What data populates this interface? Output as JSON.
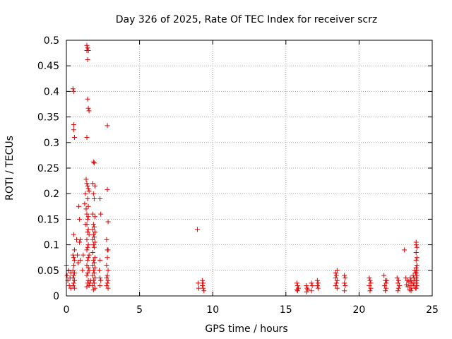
{
  "chart_data": {
    "type": "scatter",
    "title": "Day 326 of 2025, Rate Of TEC Index for receiver scrz",
    "xlabel": "GPS time / hours",
    "ylabel": "ROTI / TECUs",
    "xlim": [
      0,
      25
    ],
    "ylim": [
      0,
      0.5
    ],
    "xticks": [
      "0",
      "5",
      "10",
      "15",
      "20",
      "25"
    ],
    "yticks": [
      "0",
      "0.05",
      "0.1",
      "0.15",
      "0.2",
      "0.25",
      "0.3",
      "0.35",
      "0.4",
      "0.45",
      "0.5"
    ],
    "grid": true,
    "marker": "plus",
    "color": "#e00000",
    "points": [
      [
        0.0,
        0.06
      ],
      [
        0.05,
        0.04
      ],
      [
        0.1,
        0.03
      ],
      [
        0.15,
        0.05
      ],
      [
        0.2,
        0.02
      ],
      [
        0.25,
        0.035
      ],
      [
        0.3,
        0.045
      ],
      [
        0.3,
        0.015
      ],
      [
        0.45,
        0.405
      ],
      [
        0.5,
        0.4
      ],
      [
        0.5,
        0.335
      ],
      [
        0.5,
        0.325
      ],
      [
        0.55,
        0.31
      ],
      [
        0.5,
        0.12
      ],
      [
        0.55,
        0.09
      ],
      [
        0.45,
        0.08
      ],
      [
        0.5,
        0.075
      ],
      [
        0.55,
        0.07
      ],
      [
        0.5,
        0.06
      ],
      [
        0.45,
        0.05
      ],
      [
        0.55,
        0.045
      ],
      [
        0.5,
        0.04
      ],
      [
        0.45,
        0.035
      ],
      [
        0.55,
        0.03
      ],
      [
        0.5,
        0.025
      ],
      [
        0.45,
        0.02
      ],
      [
        0.55,
        0.015
      ],
      [
        0.7,
        0.11
      ],
      [
        0.75,
        0.08
      ],
      [
        0.8,
        0.065
      ],
      [
        0.85,
        0.175
      ],
      [
        0.9,
        0.15
      ],
      [
        0.95,
        0.11
      ],
      [
        0.9,
        0.105
      ],
      [
        0.95,
        0.07
      ],
      [
        1.15,
        0.08
      ],
      [
        1.1,
        0.05
      ],
      [
        1.3,
        0.2
      ],
      [
        1.35,
        0.17
      ],
      [
        1.3,
        0.14
      ],
      [
        1.25,
        0.18
      ],
      [
        1.4,
        0.49
      ],
      [
        1.45,
        0.485
      ],
      [
        1.4,
        0.48
      ],
      [
        1.5,
        0.48
      ],
      [
        1.45,
        0.462
      ],
      [
        1.45,
        0.385
      ],
      [
        1.5,
        0.367
      ],
      [
        1.55,
        0.362
      ],
      [
        1.4,
        0.31
      ],
      [
        1.35,
        0.228
      ],
      [
        1.4,
        0.22
      ],
      [
        1.45,
        0.215
      ],
      [
        1.5,
        0.21
      ],
      [
        1.55,
        0.205
      ],
      [
        1.45,
        0.19
      ],
      [
        1.5,
        0.175
      ],
      [
        1.4,
        0.16
      ],
      [
        1.5,
        0.155
      ],
      [
        1.45,
        0.15
      ],
      [
        1.4,
        0.14
      ],
      [
        1.5,
        0.13
      ],
      [
        1.45,
        0.125
      ],
      [
        1.55,
        0.12
      ],
      [
        1.4,
        0.11
      ],
      [
        1.5,
        0.1
      ],
      [
        1.45,
        0.095
      ],
      [
        1.4,
        0.09
      ],
      [
        1.55,
        0.08
      ],
      [
        1.5,
        0.075
      ],
      [
        1.45,
        0.07
      ],
      [
        1.4,
        0.06
      ],
      [
        1.5,
        0.055
      ],
      [
        1.55,
        0.05
      ],
      [
        1.45,
        0.045
      ],
      [
        1.4,
        0.04
      ],
      [
        1.5,
        0.03
      ],
      [
        1.45,
        0.025
      ],
      [
        1.55,
        0.02
      ],
      [
        1.4,
        0.018
      ],
      [
        1.6,
        0.025
      ],
      [
        1.65,
        0.03
      ],
      [
        1.85,
        0.262
      ],
      [
        1.9,
        0.26
      ],
      [
        1.8,
        0.22
      ],
      [
        1.95,
        0.215
      ],
      [
        1.85,
        0.2
      ],
      [
        1.9,
        0.19
      ],
      [
        1.8,
        0.16
      ],
      [
        1.95,
        0.155
      ],
      [
        1.85,
        0.14
      ],
      [
        1.9,
        0.135
      ],
      [
        1.8,
        0.13
      ],
      [
        1.95,
        0.125
      ],
      [
        1.85,
        0.12
      ],
      [
        1.9,
        0.115
      ],
      [
        1.8,
        0.11
      ],
      [
        1.95,
        0.105
      ],
      [
        1.85,
        0.1
      ],
      [
        1.9,
        0.095
      ],
      [
        1.8,
        0.085
      ],
      [
        1.95,
        0.075
      ],
      [
        1.85,
        0.07
      ],
      [
        1.9,
        0.065
      ],
      [
        1.8,
        0.06
      ],
      [
        1.95,
        0.055
      ],
      [
        1.85,
        0.05
      ],
      [
        1.9,
        0.045
      ],
      [
        1.8,
        0.04
      ],
      [
        1.95,
        0.035
      ],
      [
        1.85,
        0.03
      ],
      [
        1.9,
        0.025
      ],
      [
        1.8,
        0.02
      ],
      [
        1.95,
        0.015
      ],
      [
        1.85,
        0.012
      ],
      [
        2.3,
        0.19
      ],
      [
        2.35,
        0.16
      ],
      [
        2.3,
        0.07
      ],
      [
        2.25,
        0.05
      ],
      [
        2.3,
        0.035
      ],
      [
        2.35,
        0.03
      ],
      [
        2.3,
        0.02
      ],
      [
        2.8,
        0.333
      ],
      [
        2.8,
        0.208
      ],
      [
        2.85,
        0.145
      ],
      [
        2.75,
        0.11
      ],
      [
        2.8,
        0.09
      ],
      [
        2.85,
        0.09
      ],
      [
        2.8,
        0.075
      ],
      [
        2.75,
        0.06
      ],
      [
        2.85,
        0.05
      ],
      [
        2.8,
        0.04
      ],
      [
        2.75,
        0.035
      ],
      [
        2.85,
        0.03
      ],
      [
        2.8,
        0.025
      ],
      [
        2.75,
        0.02
      ],
      [
        2.85,
        0.015
      ],
      [
        8.95,
        0.13
      ],
      [
        9.0,
        0.025
      ],
      [
        9.05,
        0.015
      ],
      [
        9.3,
        0.03
      ],
      [
        9.35,
        0.025
      ],
      [
        9.3,
        0.02
      ],
      [
        9.35,
        0.015
      ],
      [
        9.4,
        0.01
      ],
      [
        15.75,
        0.025
      ],
      [
        15.8,
        0.02
      ],
      [
        15.85,
        0.015
      ],
      [
        15.75,
        0.012
      ],
      [
        15.8,
        0.01
      ],
      [
        16.4,
        0.02
      ],
      [
        16.45,
        0.015
      ],
      [
        16.5,
        0.012
      ],
      [
        16.4,
        0.008
      ],
      [
        16.75,
        0.025
      ],
      [
        16.8,
        0.02
      ],
      [
        16.75,
        0.01
      ],
      [
        17.15,
        0.03
      ],
      [
        17.2,
        0.025
      ],
      [
        17.15,
        0.02
      ],
      [
        17.2,
        0.015
      ],
      [
        18.4,
        0.045
      ],
      [
        18.5,
        0.05
      ],
      [
        18.45,
        0.04
      ],
      [
        18.4,
        0.035
      ],
      [
        18.5,
        0.03
      ],
      [
        18.45,
        0.025
      ],
      [
        18.4,
        0.02
      ],
      [
        18.5,
        0.015
      ],
      [
        19.0,
        0.04
      ],
      [
        19.05,
        0.035
      ],
      [
        19.0,
        0.025
      ],
      [
        19.05,
        0.02
      ],
      [
        19.0,
        0.01
      ],
      [
        20.7,
        0.035
      ],
      [
        20.75,
        0.03
      ],
      [
        20.8,
        0.025
      ],
      [
        20.7,
        0.02
      ],
      [
        20.8,
        0.015
      ],
      [
        20.75,
        0.01
      ],
      [
        21.7,
        0.04
      ],
      [
        21.8,
        0.03
      ],
      [
        21.85,
        0.025
      ],
      [
        21.75,
        0.02
      ],
      [
        21.85,
        0.015
      ],
      [
        21.8,
        0.01
      ],
      [
        21.9,
        0.03
      ],
      [
        22.6,
        0.035
      ],
      [
        22.7,
        0.03
      ],
      [
        22.65,
        0.025
      ],
      [
        22.75,
        0.02
      ],
      [
        22.7,
        0.015
      ],
      [
        22.65,
        0.01
      ],
      [
        23.1,
        0.09
      ],
      [
        23.2,
        0.035
      ],
      [
        23.3,
        0.03
      ],
      [
        23.4,
        0.028
      ],
      [
        23.25,
        0.022
      ],
      [
        23.35,
        0.018
      ],
      [
        23.45,
        0.012
      ],
      [
        23.5,
        0.035
      ],
      [
        23.55,
        0.03
      ],
      [
        23.6,
        0.025
      ],
      [
        23.5,
        0.02
      ],
      [
        23.6,
        0.015
      ],
      [
        23.55,
        0.01
      ],
      [
        23.7,
        0.04
      ],
      [
        23.75,
        0.035
      ],
      [
        23.7,
        0.025
      ],
      [
        23.75,
        0.02
      ],
      [
        23.8,
        0.05
      ],
      [
        23.85,
        0.045
      ],
      [
        23.8,
        0.03
      ],
      [
        23.85,
        0.015
      ],
      [
        23.9,
        0.105
      ],
      [
        23.9,
        0.1
      ],
      [
        23.95,
        0.095
      ],
      [
        23.9,
        0.085
      ],
      [
        23.95,
        0.075
      ],
      [
        23.9,
        0.07
      ],
      [
        23.95,
        0.06
      ],
      [
        23.9,
        0.055
      ],
      [
        23.95,
        0.05
      ],
      [
        23.9,
        0.045
      ],
      [
        23.95,
        0.04
      ],
      [
        23.9,
        0.035
      ],
      [
        23.95,
        0.03
      ],
      [
        23.9,
        0.025
      ],
      [
        23.95,
        0.02
      ],
      [
        23.9,
        0.015
      ]
    ]
  }
}
